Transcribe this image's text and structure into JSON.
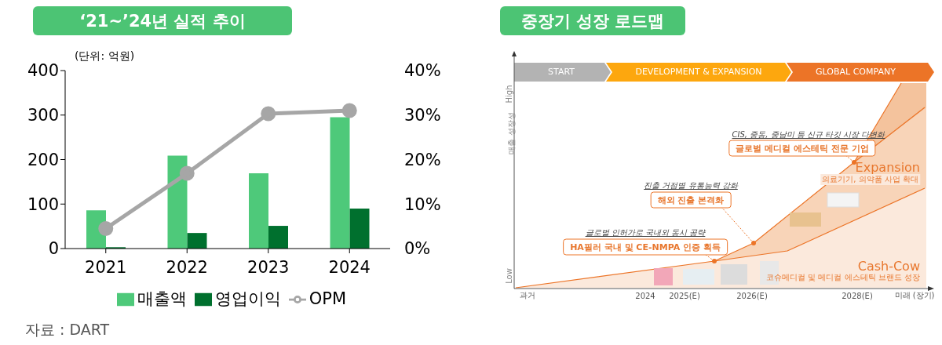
{
  "chart_data": [
    {
      "type": "bar",
      "title": "‘21~’24년 실적 추이",
      "ylabel": "(단위: 억원)",
      "categories": [
        "2021",
        "2022",
        "2023",
        "2024"
      ],
      "series": [
        {
          "name": "매출액",
          "color": "#4ec97a",
          "values": [
            86,
            209,
            169,
            295
          ]
        },
        {
          "name": "영업이익",
          "color": "#00702e",
          "values": [
            3,
            35,
            51,
            90
          ]
        },
        {
          "name": "OPM",
          "type": "line",
          "axis": "y2",
          "color": "#a6a6a6",
          "values": [
            4.5,
            16.9,
            30.3,
            31.0
          ]
        }
      ],
      "ylim": [
        0,
        400
      ],
      "yticks": [
        0,
        100,
        200,
        300,
        400
      ],
      "y2lim": [
        0,
        40
      ],
      "y2ticks": [
        {
          "value": 0,
          "label": "0%"
        },
        {
          "value": 10,
          "label": "10%"
        },
        {
          "value": 20,
          "label": "20%"
        },
        {
          "value": 30,
          "label": "30%"
        },
        {
          "value": 40,
          "label": "40%"
        }
      ],
      "legend": "bottom",
      "marker": "circle",
      "annotations": [
        "자료 : DART"
      ]
    },
    {
      "type": "other",
      "title": "중장기 성장 로드맵",
      "annotations": [
        "START",
        "DEVELOPMENT & EXPANSION",
        "GLOBAL COMPANY",
        "High",
        "Low",
        "매출 성장성",
        "CIS, 중동, 중남미 등 신규 타깃 시장 다변화",
        "글로벌 메디컬 에스테틱 전문 기업",
        "Expansion",
        "의료기기, 의약품 사업 확대",
        "진출 거점별 유통능력 강화",
        "해외 진출 본격화",
        "글로벌 인허가로 국내외 동시 공략",
        "HA필러 국내 및 CE-NMPA 인증 획득",
        "Cash-Cow",
        "코슈메디컬 및 메디컬 에스테틱 브랜드 성장",
        "과거",
        "2024",
        "2025(E)",
        "2026(E)",
        "2028(E)",
        "미래 (장기)"
      ]
    }
  ]
}
